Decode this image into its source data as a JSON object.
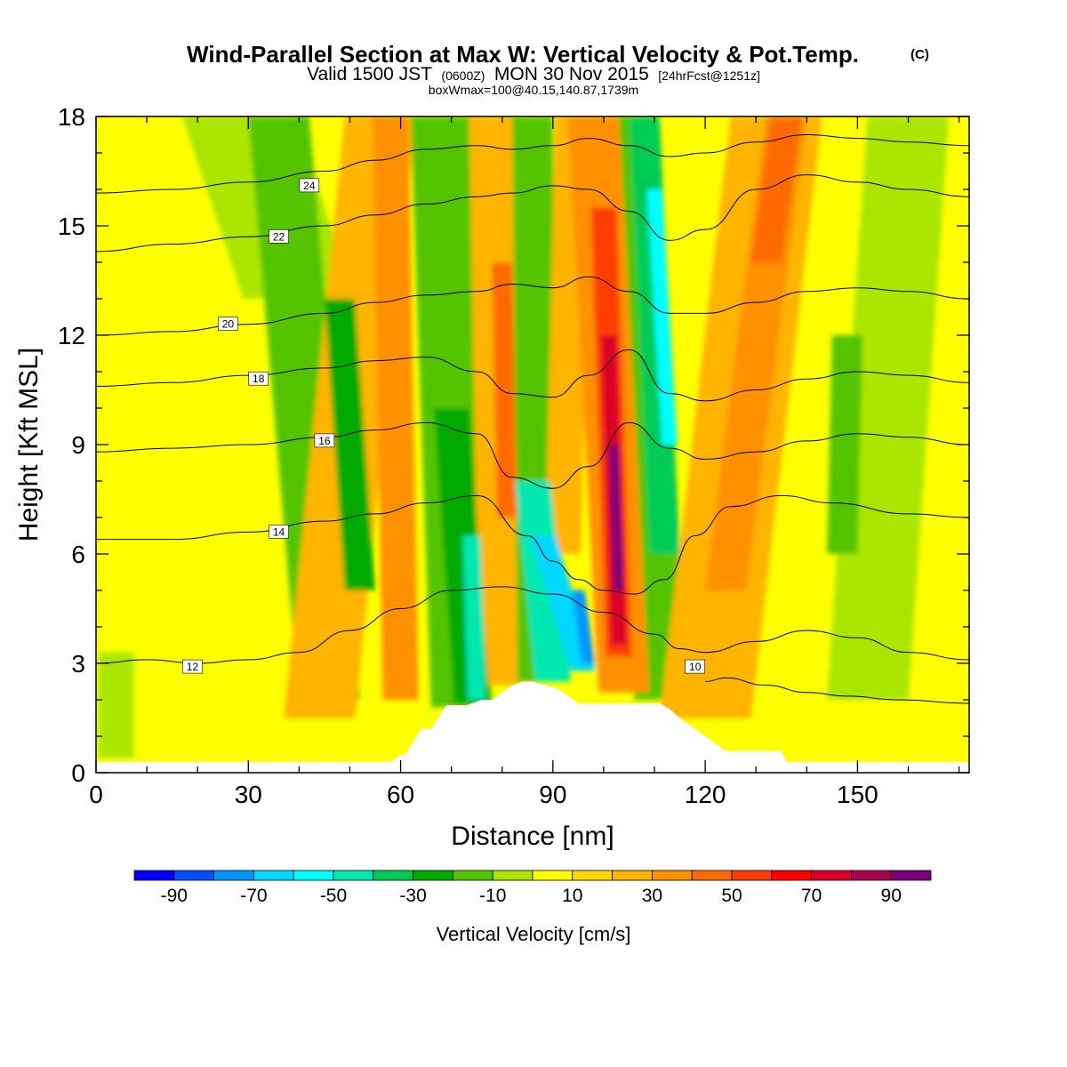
{
  "title": {
    "main": "Wind-Parallel Section at Max W: Vertical Velocity & Pot.Temp.",
    "copyright": "(C)",
    "valid_prefix": "Valid 1500 JST",
    "valid_utc": "(0600Z)",
    "valid_date": "MON 30 Nov 2015",
    "forecast": "[24hrFcst@1251z]",
    "box": "boxWmax=100@40.15,140.87,1739m"
  },
  "chart_data": {
    "type": "heatmap",
    "xlabel": "Distance [nm]",
    "ylabel": "Height [Kft MSL]",
    "xlim": [
      0,
      172
    ],
    "ylim": [
      0,
      18
    ],
    "x_ticks": [
      0,
      30,
      60,
      90,
      120,
      150
    ],
    "y_ticks": [
      0,
      3,
      6,
      9,
      12,
      15,
      18
    ],
    "colorbar": {
      "title": "Vertical Velocity [cm/s]",
      "levels": [
        -100,
        -90,
        -80,
        -70,
        -60,
        -50,
        -40,
        -30,
        -20,
        -10,
        0,
        10,
        20,
        30,
        40,
        50,
        60,
        70,
        80,
        90,
        100
      ],
      "labeled_levels": [
        -90,
        -70,
        -50,
        -30,
        -10,
        10,
        30,
        50,
        70,
        90
      ],
      "colors": [
        "#0000ff",
        "#0050ff",
        "#0096ff",
        "#00d8ff",
        "#00ffff",
        "#00e8b0",
        "#00cc55",
        "#00aa00",
        "#55c400",
        "#aae600",
        "#ffff00",
        "#ffd800",
        "#ffb400",
        "#ff9000",
        "#ff6a00",
        "#ff3c00",
        "#ff0000",
        "#dc0028",
        "#aa0050",
        "#7a0078"
      ]
    },
    "terrain": {
      "x": [
        0,
        58,
        60,
        61,
        64,
        66,
        69,
        73,
        76,
        78,
        80,
        82,
        84,
        86,
        91,
        93,
        95,
        97,
        101,
        111,
        113,
        115,
        117,
        120,
        124,
        135,
        136,
        172
      ],
      "height": [
        0.3,
        0.3,
        0.5,
        0.5,
        1.2,
        1.2,
        1.85,
        1.85,
        2.0,
        2.0,
        2.2,
        2.4,
        2.5,
        2.5,
        2.3,
        2.1,
        1.9,
        1.9,
        1.9,
        1.9,
        1.75,
        1.5,
        1.3,
        1.0,
        0.6,
        0.6,
        0.3,
        0.3
      ]
    },
    "vertical_velocity_bands": [
      {
        "x_bottom": 4,
        "x_top": 4,
        "y_min": 0.4,
        "y_max": 3.3,
        "width": 7,
        "value": -10
      },
      {
        "x_bottom": 40,
        "x_top": 28,
        "y_min": 13,
        "y_max": 18,
        "width": 22,
        "value": -10
      },
      {
        "x_bottom": 46,
        "x_top": 36,
        "y_min": 2,
        "y_max": 18,
        "width": 12,
        "value": -20
      },
      {
        "x_bottom": 52,
        "x_top": 48,
        "y_min": 5,
        "y_max": 13,
        "width": 6,
        "value": -30
      },
      {
        "x_bottom": 44,
        "x_top": 56,
        "y_min": 1.5,
        "y_max": 18,
        "width": 14,
        "value": 20
      },
      {
        "x_bottom": 60,
        "x_top": 58,
        "y_min": 2,
        "y_max": 18,
        "width": 7,
        "value": 30
      },
      {
        "x_bottom": 72,
        "x_top": 68,
        "y_min": 1.8,
        "y_max": 18,
        "width": 12,
        "value": -20
      },
      {
        "x_bottom": 74,
        "x_top": 70,
        "y_min": 1.9,
        "y_max": 10,
        "width": 7,
        "value": -30
      },
      {
        "x_bottom": 75,
        "x_top": 74,
        "y_min": 2.0,
        "y_max": 6.5,
        "width": 3.5,
        "value": -50
      },
      {
        "x_bottom": 80,
        "x_top": 78,
        "y_min": 2.4,
        "y_max": 18,
        "width": 9,
        "value": 20
      },
      {
        "x_bottom": 81,
        "x_top": 80,
        "y_min": 7,
        "y_max": 14,
        "width": 4,
        "value": 40
      },
      {
        "x_bottom": 87,
        "x_top": 86,
        "y_min": 2.5,
        "y_max": 18,
        "width": 8,
        "value": -20
      },
      {
        "x_bottom": 90,
        "x_top": 86,
        "y_min": 2.5,
        "y_max": 8,
        "width": 7,
        "value": -50
      },
      {
        "x_bottom": 96,
        "x_top": 88,
        "y_min": 2.8,
        "y_max": 6.5,
        "width": 5,
        "value": -70
      },
      {
        "x_bottom": 97,
        "x_top": 95,
        "y_min": 3.0,
        "y_max": 5.0,
        "width": 2.5,
        "value": -80
      },
      {
        "x_bottom": 92,
        "x_top": 94,
        "y_min": 6,
        "y_max": 18,
        "width": 7,
        "value": 20
      },
      {
        "x_bottom": 104,
        "x_top": 98,
        "y_min": 2.2,
        "y_max": 18,
        "width": 10,
        "value": 30
      },
      {
        "x_bottom": 103,
        "x_top": 100,
        "y_min": 3.2,
        "y_max": 15.5,
        "width": 5,
        "value": 50
      },
      {
        "x_bottom": 103,
        "x_top": 101,
        "y_min": 3.5,
        "y_max": 12,
        "width": 3.2,
        "value": 70
      },
      {
        "x_bottom": 103,
        "x_top": 102,
        "y_min": 5,
        "y_max": 9,
        "width": 1.8,
        "value": 90
      },
      {
        "x_bottom": 111,
        "x_top": 106,
        "y_min": 2.0,
        "y_max": 18,
        "width": 10,
        "value": -20
      },
      {
        "x_bottom": 112,
        "x_top": 108,
        "y_min": 6,
        "y_max": 18,
        "width": 6,
        "value": -40
      },
      {
        "x_bottom": 113,
        "x_top": 110,
        "y_min": 9,
        "y_max": 16,
        "width": 3,
        "value": -60
      },
      {
        "x_bottom": 120,
        "x_top": 134,
        "y_min": 1.5,
        "y_max": 18,
        "width": 18,
        "value": 20
      },
      {
        "x_bottom": 124,
        "x_top": 136,
        "y_min": 5,
        "y_max": 18,
        "width": 8,
        "value": 30
      },
      {
        "x_bottom": 132,
        "x_top": 136,
        "y_min": 14,
        "y_max": 18,
        "width": 6,
        "value": 40
      },
      {
        "x_bottom": 152,
        "x_top": 160,
        "y_min": 2,
        "y_max": 18,
        "width": 16,
        "value": -10
      },
      {
        "x_bottom": 147,
        "x_top": 148,
        "y_min": 6,
        "y_max": 12,
        "width": 6,
        "value": -20
      }
    ],
    "theta_contours": [
      {
        "value": 10,
        "x": [
          120,
          124,
          132,
          140,
          148,
          158,
          172
        ],
        "y": [
          2.5,
          2.6,
          2.4,
          2.2,
          2.1,
          2.0,
          1.9
        ],
        "label_x": 118,
        "label_y": 2.9
      },
      {
        "value": 12,
        "x": [
          0,
          10,
          20,
          30,
          40,
          50,
          60,
          70,
          80,
          90,
          100,
          110,
          115,
          120,
          130,
          140,
          150,
          160,
          172
        ],
        "y": [
          3.0,
          3.1,
          3.0,
          3.1,
          3.3,
          3.9,
          4.5,
          5.0,
          5.1,
          4.9,
          4.4,
          3.8,
          3.4,
          3.3,
          3.6,
          3.9,
          3.7,
          3.3,
          3.1
        ],
        "label_x": 19,
        "label_y": 2.9
      },
      {
        "value": 14,
        "x": [
          0,
          15,
          30,
          45,
          55,
          65,
          75,
          85,
          90,
          95,
          100,
          106,
          112,
          118,
          125,
          135,
          145,
          160,
          172
        ],
        "y": [
          6.4,
          6.4,
          6.6,
          6.9,
          7.1,
          7.4,
          7.6,
          6.5,
          5.8,
          5.3,
          5.0,
          4.9,
          5.3,
          6.5,
          7.3,
          7.6,
          7.4,
          7.1,
          7.0
        ],
        "label_x": 36,
        "label_y": 6.6
      },
      {
        "value": 16,
        "x": [
          0,
          15,
          30,
          45,
          55,
          65,
          75,
          82,
          90,
          97,
          105,
          113,
          120,
          130,
          140,
          150,
          160,
          172
        ],
        "y": [
          8.8,
          8.9,
          9.0,
          9.2,
          9.4,
          9.6,
          9.3,
          8.1,
          7.8,
          8.4,
          9.6,
          8.9,
          8.6,
          8.8,
          9.1,
          9.3,
          9.2,
          9.0
        ],
        "label_x": 45,
        "label_y": 9.1
      },
      {
        "value": 18,
        "x": [
          0,
          15,
          30,
          45,
          55,
          65,
          75,
          82,
          90,
          97,
          105,
          113,
          120,
          130,
          140,
          150,
          160,
          172
        ],
        "y": [
          10.6,
          10.7,
          10.9,
          11.1,
          11.3,
          11.4,
          11.0,
          10.4,
          10.3,
          10.9,
          11.6,
          10.4,
          10.2,
          10.5,
          10.8,
          11.0,
          10.9,
          10.7
        ],
        "label_x": 32,
        "label_y": 10.8
      },
      {
        "value": 20,
        "x": [
          0,
          15,
          30,
          45,
          55,
          65,
          75,
          82,
          90,
          97,
          105,
          113,
          120,
          130,
          140,
          150,
          160,
          172
        ],
        "y": [
          12.0,
          12.1,
          12.3,
          12.6,
          12.9,
          13.1,
          13.2,
          13.4,
          13.3,
          13.6,
          13.2,
          12.6,
          12.6,
          12.9,
          13.2,
          13.3,
          13.2,
          13.0
        ],
        "label_x": 26,
        "label_y": 12.3
      },
      {
        "value": 22,
        "x": [
          0,
          15,
          30,
          45,
          55,
          65,
          75,
          82,
          90,
          97,
          105,
          113,
          120,
          130,
          140,
          150,
          160,
          172
        ],
        "y": [
          14.3,
          14.5,
          14.7,
          15.0,
          15.3,
          15.6,
          15.8,
          15.9,
          16.1,
          16.0,
          15.4,
          14.6,
          14.9,
          16.0,
          16.4,
          16.2,
          16.0,
          15.8
        ],
        "label_x": 36,
        "label_y": 14.7
      },
      {
        "value": 24,
        "x": [
          0,
          15,
          30,
          45,
          55,
          65,
          75,
          82,
          90,
          97,
          105,
          113,
          120,
          130,
          140,
          150,
          160,
          172
        ],
        "y": [
          15.9,
          16.0,
          16.2,
          16.5,
          16.8,
          17.1,
          17.2,
          17.1,
          17.2,
          17.4,
          17.2,
          16.9,
          17.0,
          17.3,
          17.5,
          17.4,
          17.3,
          17.2
        ],
        "label_x": 42,
        "label_y": 16.1
      }
    ]
  }
}
